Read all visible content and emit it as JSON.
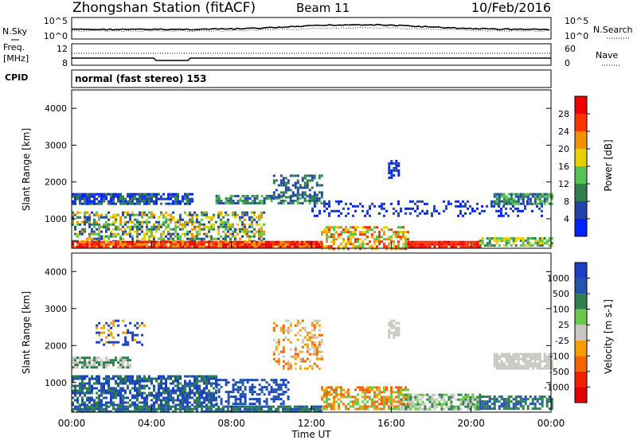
{
  "header": {
    "station": "Zhongshan Station (fitACF)",
    "beam": "Beam 11",
    "date": "10/Feb/2016"
  },
  "noise_panel": {
    "left_label": "N.Sky",
    "right_label": "N.Search",
    "left_ticks": [
      "10^5",
      "10^0"
    ],
    "right_ticks": [
      "10^5",
      "10^0"
    ]
  },
  "freq_panel": {
    "left_label_1": "Freq.",
    "left_label_2": "[MHz]",
    "right_label": "Nave",
    "left_ticks": [
      "12",
      "8"
    ],
    "right_ticks": [
      "60",
      "0"
    ]
  },
  "cpid_panel": {
    "label": "CPID",
    "text": "normal (fast stereo) 153"
  },
  "chart_data": [
    {
      "type": "heatmap",
      "name": "power",
      "ylabel": "Slant Range [km]",
      "yticks": [
        "4000",
        "3000",
        "2000",
        "1000"
      ],
      "ylim": [
        200,
        4500
      ],
      "colorbar_label": "Power [dB]",
      "colorbar_ticks": [
        "28",
        "24",
        "20",
        "16",
        "12",
        "8",
        "4"
      ],
      "colors": [
        "#0022ff",
        "#2244aa",
        "#2f7f4f",
        "#52c44f",
        "#e8d000",
        "#f39200",
        "#ff3300",
        "#ee0000"
      ]
    },
    {
      "type": "heatmap",
      "name": "velocity",
      "ylabel": "Slant Range [km]",
      "yticks": [
        "4000",
        "3000",
        "2000",
        "1000"
      ],
      "ylim": [
        200,
        4500
      ],
      "colorbar_label": "Velocity [m s-1]",
      "colorbar_ticks": [
        "1000",
        "500",
        "100",
        "25",
        "-25",
        "-100",
        "-500",
        "-1000"
      ],
      "colors": [
        "#1a3fc4",
        "#2255aa",
        "#2f7f4f",
        "#6ac84a",
        "#c8c8c0",
        "#f3a000",
        "#f56400",
        "#f02000",
        "#e00000"
      ]
    }
  ],
  "xaxis": {
    "labels": [
      "00:00",
      "04:00",
      "08:00",
      "12:00",
      "16:00",
      "20:00",
      "00:00"
    ],
    "title": "Time UT"
  }
}
